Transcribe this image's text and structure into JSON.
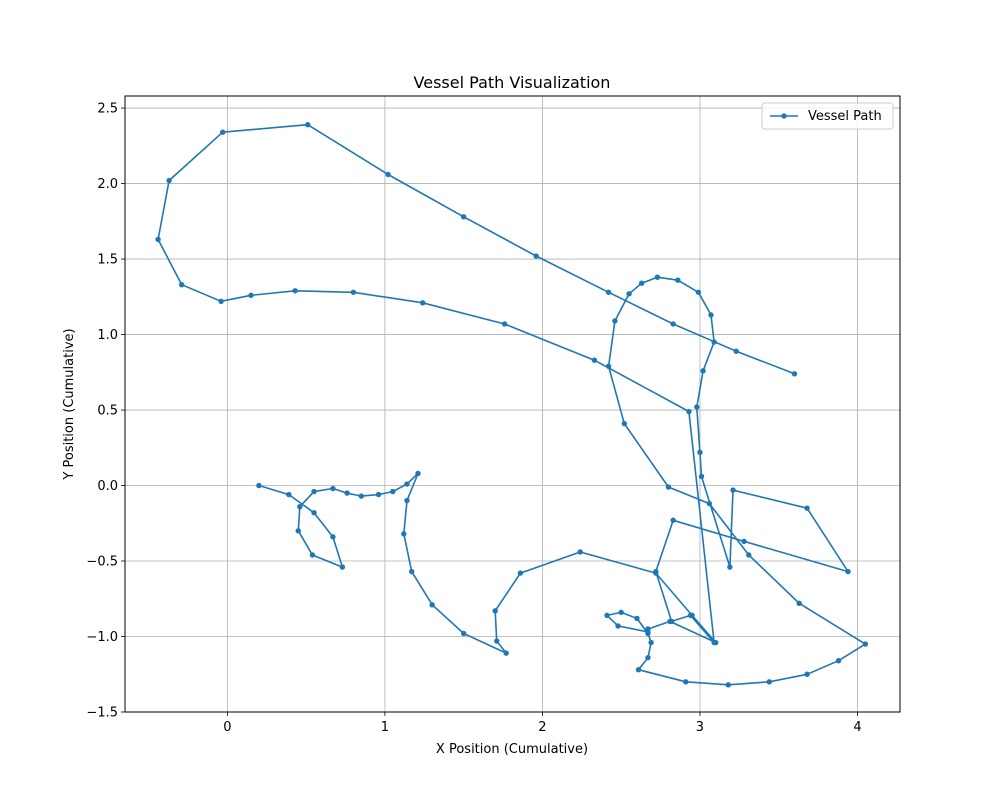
{
  "chart_data": {
    "type": "line",
    "title": "Vessel Path Visualization",
    "xlabel": "X Position (Cumulative)",
    "ylabel": "Y Position (Cumulative)",
    "xlim": [
      -0.65,
      4.27
    ],
    "ylim": [
      -1.5,
      2.58
    ],
    "xticks": [
      0,
      1,
      2,
      3,
      4
    ],
    "yticks": [
      -1.5,
      -1.0,
      -0.5,
      0.0,
      0.5,
      1.0,
      1.5,
      2.0,
      2.5
    ],
    "grid": true,
    "legend_position": "top-right",
    "series": [
      {
        "name": "Vessel Path",
        "color": "#1f77b4",
        "marker": "circle",
        "points": [
          [
            0.2,
            0.0
          ],
          [
            0.39,
            -0.06
          ],
          [
            0.55,
            -0.18
          ],
          [
            0.67,
            -0.34
          ],
          [
            0.73,
            -0.54
          ],
          [
            0.54,
            -0.46
          ],
          [
            0.45,
            -0.3
          ],
          [
            0.46,
            -0.14
          ],
          [
            0.55,
            -0.04
          ],
          [
            0.67,
            -0.02
          ],
          [
            0.76,
            -0.05
          ],
          [
            0.85,
            -0.07
          ],
          [
            0.96,
            -0.06
          ],
          [
            1.05,
            -0.04
          ],
          [
            1.14,
            0.01
          ],
          [
            1.21,
            0.08
          ],
          [
            1.14,
            -0.1
          ],
          [
            1.12,
            -0.32
          ],
          [
            1.17,
            -0.57
          ],
          [
            1.3,
            -0.79
          ],
          [
            1.5,
            -0.98
          ],
          [
            1.77,
            -1.11
          ],
          [
            1.71,
            -1.03
          ],
          [
            1.7,
            -0.83
          ],
          [
            1.86,
            -0.58
          ],
          [
            2.24,
            -0.44
          ],
          [
            2.72,
            -0.58
          ],
          [
            2.95,
            -0.86
          ],
          [
            3.1,
            -1.04
          ],
          [
            2.81,
            -0.9
          ],
          [
            2.67,
            -0.95
          ],
          [
            2.67,
            -0.97
          ],
          [
            2.48,
            -0.93
          ],
          [
            2.41,
            -0.86
          ],
          [
            2.5,
            -0.84
          ],
          [
            2.6,
            -0.88
          ],
          [
            2.67,
            -0.98
          ],
          [
            2.69,
            -1.04
          ],
          [
            2.67,
            -1.14
          ],
          [
            2.61,
            -1.22
          ],
          [
            2.91,
            -1.3
          ],
          [
            3.18,
            -1.32
          ],
          [
            3.44,
            -1.3
          ],
          [
            3.68,
            -1.25
          ],
          [
            3.88,
            -1.16
          ],
          [
            4.05,
            -1.05
          ],
          [
            3.63,
            -0.78
          ],
          [
            3.31,
            -0.46
          ],
          [
            3.06,
            -0.12
          ],
          [
            2.8,
            -0.01
          ],
          [
            2.52,
            0.41
          ],
          [
            2.42,
            0.79
          ],
          [
            2.46,
            1.09
          ],
          [
            2.55,
            1.27
          ],
          [
            2.63,
            1.34
          ],
          [
            2.73,
            1.38
          ],
          [
            2.86,
            1.36
          ],
          [
            2.99,
            1.28
          ],
          [
            3.07,
            1.13
          ],
          [
            3.09,
            0.95
          ],
          [
            3.02,
            0.76
          ],
          [
            2.98,
            0.52
          ],
          [
            3.0,
            0.22
          ],
          [
            3.01,
            0.06
          ],
          [
            3.19,
            -0.54
          ],
          [
            3.21,
            -0.03
          ],
          [
            3.68,
            -0.15
          ],
          [
            3.94,
            -0.57
          ],
          [
            3.28,
            -0.37
          ],
          [
            2.83,
            -0.23
          ],
          [
            2.72,
            -0.57
          ],
          [
            2.82,
            -0.9
          ],
          [
            2.94,
            -0.86
          ],
          [
            3.09,
            -1.04
          ],
          [
            2.93,
            0.49
          ],
          [
            2.33,
            0.83
          ],
          [
            1.76,
            1.07
          ],
          [
            1.24,
            1.21
          ],
          [
            0.8,
            1.28
          ],
          [
            0.43,
            1.29
          ],
          [
            0.15,
            1.26
          ],
          [
            -0.04,
            1.22
          ],
          [
            -0.29,
            1.33
          ],
          [
            -0.44,
            1.63
          ],
          [
            -0.37,
            2.02
          ],
          [
            -0.03,
            2.34
          ],
          [
            0.51,
            2.39
          ],
          [
            1.02,
            2.06
          ],
          [
            1.5,
            1.78
          ],
          [
            1.96,
            1.52
          ],
          [
            2.42,
            1.28
          ],
          [
            2.83,
            1.07
          ],
          [
            3.23,
            0.89
          ],
          [
            3.6,
            0.74
          ]
        ]
      }
    ]
  }
}
